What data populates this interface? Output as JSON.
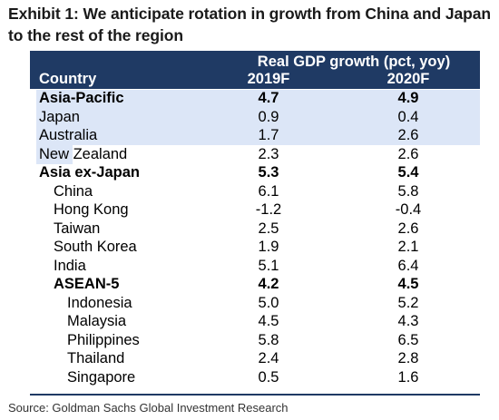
{
  "title": "Exhibit 1: We anticipate rotation in growth from China and Japan to the rest of the region",
  "header": {
    "group_label": "Real GDP growth (pct, yoy)",
    "country_label": "Country",
    "year1": "2019F",
    "year2": "2020F"
  },
  "colors": {
    "header_bg": "#1f3a64",
    "highlight": "#dce6f7"
  },
  "rows": [
    {
      "country": "Asia-Pacific",
      "v2019": "4.7",
      "v2020": "4.9",
      "bold": true,
      "level": 0
    },
    {
      "country": "Japan",
      "v2019": "0.9",
      "v2020": "0.4",
      "bold": false,
      "level": 0
    },
    {
      "country": "Australia",
      "v2019": "1.7",
      "v2020": "2.6",
      "bold": false,
      "level": 0
    },
    {
      "country": "New Zealand",
      "v2019": "2.3",
      "v2020": "2.6",
      "bold": false,
      "level": 0
    },
    {
      "country": "Asia ex-Japan",
      "v2019": "5.3",
      "v2020": "5.4",
      "bold": true,
      "level": 0
    },
    {
      "country": "China",
      "v2019": "6.1",
      "v2020": "5.8",
      "bold": false,
      "level": 1
    },
    {
      "country": "Hong Kong",
      "v2019": "-1.2",
      "v2020": "-0.4",
      "bold": false,
      "level": 1
    },
    {
      "country": "Taiwan",
      "v2019": "2.5",
      "v2020": "2.6",
      "bold": false,
      "level": 1
    },
    {
      "country": "South Korea",
      "v2019": "1.9",
      "v2020": "2.1",
      "bold": false,
      "level": 1
    },
    {
      "country": "India",
      "v2019": "5.1",
      "v2020": "6.4",
      "bold": false,
      "level": 1
    },
    {
      "country": "ASEAN-5",
      "v2019": "4.2",
      "v2020": "4.5",
      "bold": true,
      "level": 1
    },
    {
      "country": "Indonesia",
      "v2019": "5.0",
      "v2020": "5.2",
      "bold": false,
      "level": 2
    },
    {
      "country": "Malaysia",
      "v2019": "4.5",
      "v2020": "4.3",
      "bold": false,
      "level": 2
    },
    {
      "country": "Philippines",
      "v2019": "5.8",
      "v2020": "6.5",
      "bold": false,
      "level": 2
    },
    {
      "country": "Thailand",
      "v2019": "2.4",
      "v2020": "2.8",
      "bold": false,
      "level": 2
    },
    {
      "country": "Singapore",
      "v2019": "0.5",
      "v2020": "1.6",
      "bold": false,
      "level": 2
    }
  ],
  "source": "Source: Goldman Sachs Global Investment Research"
}
